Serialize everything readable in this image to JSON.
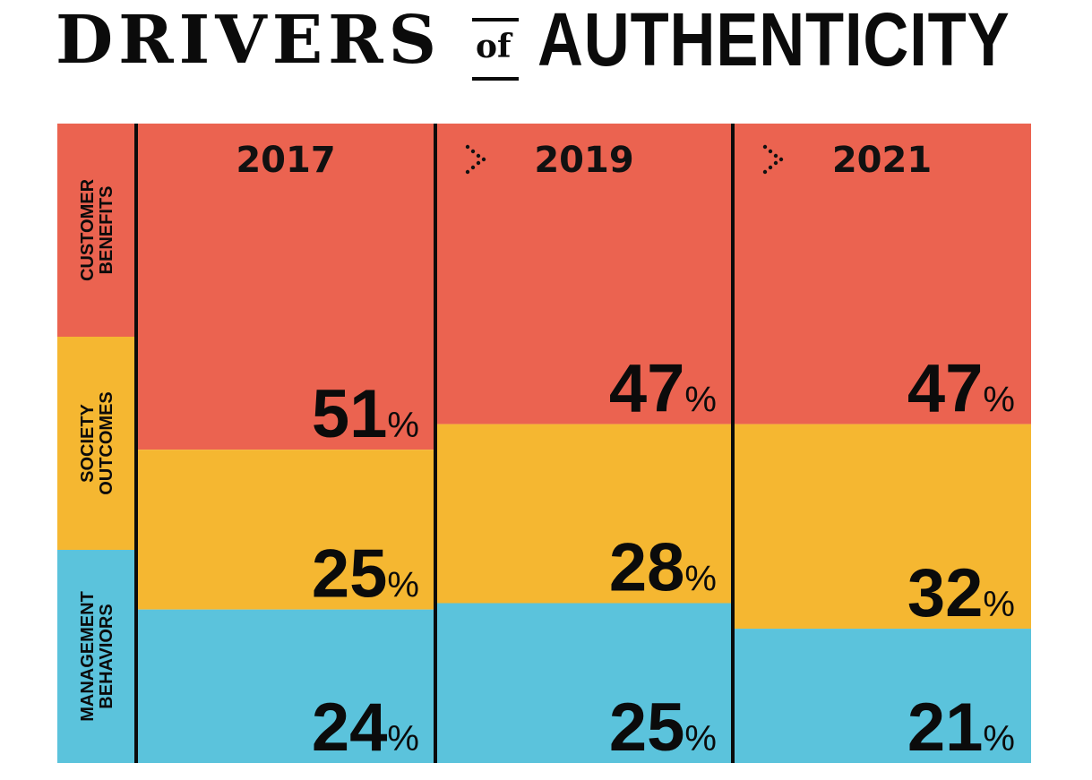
{
  "title": {
    "left": "DRIVERS",
    "of": "of",
    "right": "AUTHENTICITY"
  },
  "colors": {
    "customer_benefits": "#EB6350",
    "society_outcomes": "#F5B731",
    "management_behaviors": "#5BC3DC",
    "divider": "#0b0b0b"
  },
  "chart_data": {
    "type": "bar",
    "stacked": true,
    "orientation": "vertical",
    "categories": [
      "2017",
      "2019",
      "2021"
    ],
    "series": [
      {
        "name": "CUSTOMER BENEFITS",
        "values": [
          51,
          47,
          47
        ],
        "color": "#EB6350"
      },
      {
        "name": "SOCIETY OUTCOMES",
        "values": [
          25,
          28,
          32
        ],
        "color": "#F5B731"
      },
      {
        "name": "MANAGEMENT BEHAVIORS",
        "values": [
          24,
          25,
          21
        ],
        "color": "#5BC3DC"
      }
    ],
    "value_suffix": "%",
    "ylim": [
      0,
      100
    ],
    "legend_placement": "left",
    "grid": false
  },
  "legend_labels": [
    {
      "line1": "CUSTOMER",
      "line2": "BENEFITS"
    },
    {
      "line1": "SOCIETY",
      "line2": "OUTCOMES"
    },
    {
      "line1": "MANAGEMENT",
      "line2": "BEHAVIORS"
    }
  ],
  "arrow_icon": "dotted-chevron-right-icon"
}
